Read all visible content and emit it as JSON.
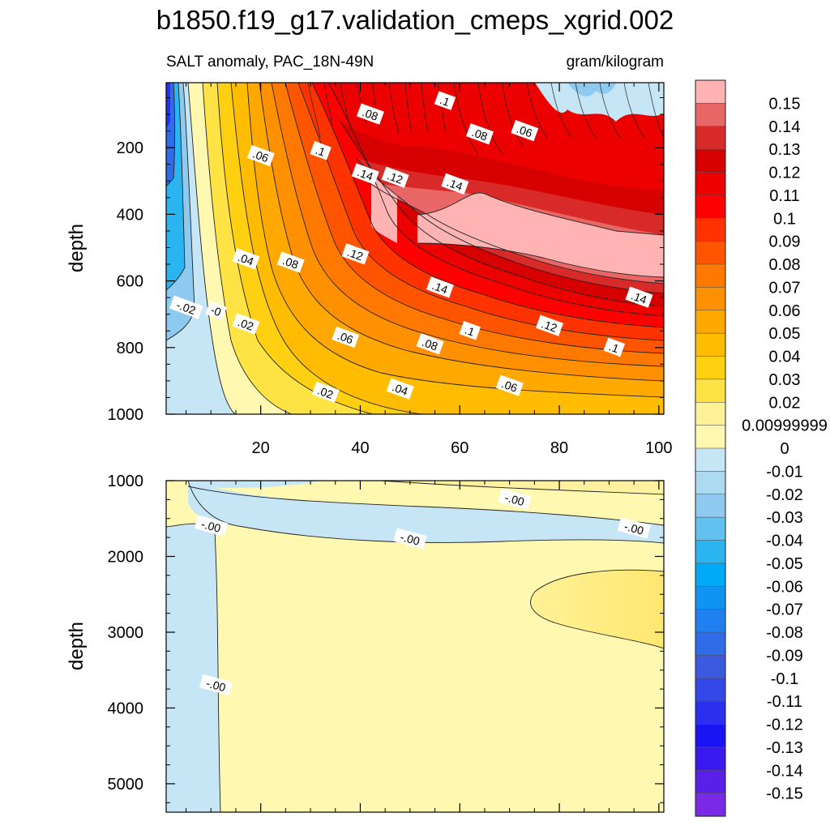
{
  "title": "b1850.f19_g17.validation_cmeps_xgrid.002",
  "subtitle_left": "SALT anomaly, PAC_18N-49N",
  "subtitle_right": "gram/kilogram",
  "chart_data": [
    {
      "type": "heatmap",
      "name": "upper",
      "ylabel": "depth",
      "xlim": [
        1,
        101
      ],
      "ylim": [
        1000,
        5
      ],
      "x_ticks": [
        20,
        40,
        60,
        80,
        100
      ],
      "y_ticks": [
        200,
        400,
        600,
        800,
        1000
      ],
      "contour_labels": [
        {
          "text": ".08",
          "x": 42,
          "y": 100
        },
        {
          "text": ".1",
          "x": 57,
          "y": 60
        },
        {
          "text": ".08",
          "x": 64,
          "y": 160
        },
        {
          "text": ".06",
          "x": 73,
          "y": 150
        },
        {
          "text": ".06",
          "x": 20,
          "y": 225
        },
        {
          "text": ".1",
          "x": 32,
          "y": 210
        },
        {
          "text": ".14",
          "x": 41,
          "y": 280
        },
        {
          "text": ".12",
          "x": 47,
          "y": 290
        },
        {
          "text": ".14",
          "x": 59,
          "y": 310
        },
        {
          "text": ".04",
          "x": 17,
          "y": 535
        },
        {
          "text": ".08",
          "x": 26,
          "y": 545
        },
        {
          "text": ".12",
          "x": 39,
          "y": 520
        },
        {
          "text": ".14",
          "x": 56,
          "y": 620
        },
        {
          "text": ".14",
          "x": 96,
          "y": 650
        },
        {
          "text": "-.02",
          "x": 5,
          "y": 680
        },
        {
          "text": "-0",
          "x": 11,
          "y": 690
        },
        {
          "text": ".02",
          "x": 17,
          "y": 730
        },
        {
          "text": ".06",
          "x": 37,
          "y": 770
        },
        {
          "text": ".1",
          "x": 62,
          "y": 750
        },
        {
          "text": ".12",
          "x": 78,
          "y": 735
        },
        {
          "text": ".08",
          "x": 54,
          "y": 790
        },
        {
          "text": ".1",
          "x": 91,
          "y": 800
        },
        {
          "text": ".02",
          "x": 33,
          "y": 935
        },
        {
          "text": ".04",
          "x": 48,
          "y": 925
        },
        {
          "text": ".06",
          "x": 70,
          "y": 915
        }
      ]
    },
    {
      "type": "heatmap",
      "name": "lower",
      "ylabel": "depth",
      "xlim": [
        1,
        101
      ],
      "ylim": [
        5375,
        1000
      ],
      "y_ticks": [
        1000,
        2000,
        3000,
        4000,
        5000
      ],
      "contour_labels": [
        {
          "text": "-.00",
          "x": 71,
          "y": 1250
        },
        {
          "text": "-.00",
          "x": 10,
          "y": 1600
        },
        {
          "text": "-.00",
          "x": 50,
          "y": 1770
        },
        {
          "text": "-.00",
          "x": 95,
          "y": 1630
        },
        {
          "text": "-.00",
          "x": 11,
          "y": 3700
        }
      ]
    }
  ],
  "colorbar": {
    "labels": [
      "0.15",
      "0.14",
      "0.13",
      "0.12",
      "0.11",
      "0.1",
      "0.09",
      "0.08",
      "0.07",
      "0.06",
      "0.05",
      "0.04",
      "0.03",
      "0.02",
      "0.00999999",
      "0",
      "-0.01",
      "-0.02",
      "-0.03",
      "-0.04",
      "-0.05",
      "-0.06",
      "-0.07",
      "-0.08",
      "-0.09",
      "-0.1",
      "-0.11",
      "-0.12",
      "-0.13",
      "-0.14",
      "-0.15"
    ],
    "colors": [
      "#ffb3b3",
      "#e86666",
      "#d92a2a",
      "#d70000",
      "#ec0000",
      "#ff0000",
      "#ff3300",
      "#ff5500",
      "#ff7800",
      "#ff9000",
      "#ffa800",
      "#ffbc00",
      "#ffd012",
      "#ffe345",
      "#fff197",
      "#fff8b0",
      "#c6e6f5",
      "#acdaf1",
      "#8ecaef",
      "#62c1f0",
      "#2ab4f0",
      "#00aaf6",
      "#0f94f4",
      "#2080f0",
      "#2f6ce8",
      "#3c5ae0",
      "#3448e8",
      "#2a30ee",
      "#1a14f4",
      "#3a1aee",
      "#5a20ea",
      "#7a2ae6"
    ]
  }
}
